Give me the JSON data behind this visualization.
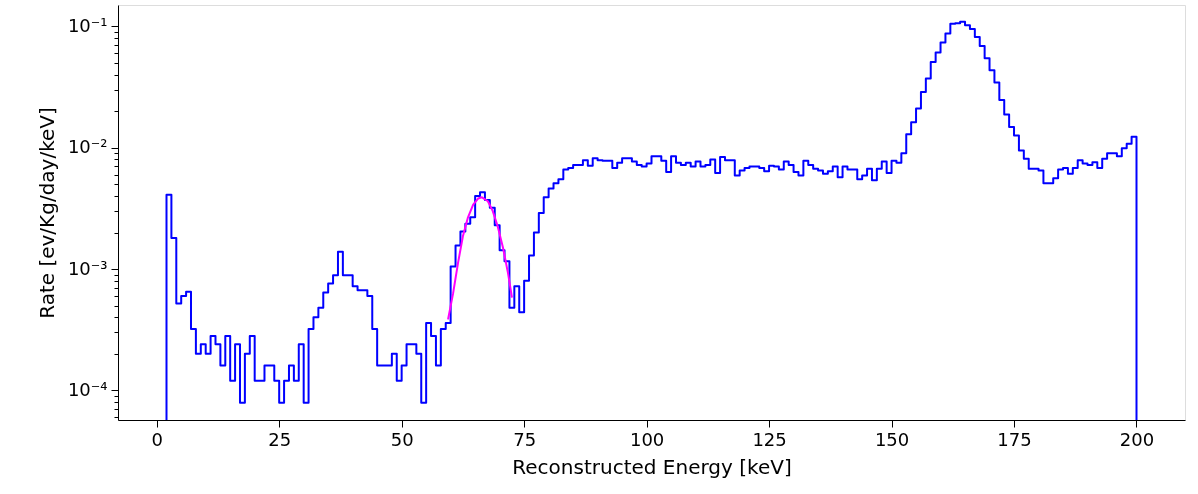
{
  "chart_data": {
    "type": "histogram",
    "xlabel": "Reconstructed Energy [keV]",
    "ylabel": "Rate [ev/Kg/day/keV]",
    "log": "y",
    "color": "#0000ff",
    "bins": [
      2,
      3,
      4,
      5,
      6,
      7,
      8,
      9,
      10,
      11,
      12,
      13,
      14,
      15,
      16,
      17,
      18,
      19,
      20,
      21,
      22,
      23,
      24,
      25,
      26,
      27,
      28,
      29,
      30,
      31,
      32,
      33,
      34,
      35,
      36,
      37,
      38,
      39,
      40,
      41,
      42,
      43,
      44,
      45,
      46,
      47,
      48,
      49,
      50,
      51,
      52,
      53,
      54,
      55,
      56,
      57,
      58,
      59,
      60,
      61,
      62,
      63,
      64,
      65,
      66,
      67,
      68,
      69,
      70,
      71,
      72,
      73,
      74,
      75,
      76,
      77,
      78,
      79,
      80,
      81,
      82,
      83,
      84,
      85,
      86,
      87,
      88,
      89,
      90,
      91,
      92,
      93,
      94,
      95,
      96,
      97,
      98,
      99,
      100,
      101,
      102,
      103,
      104,
      105,
      106,
      107,
      108,
      109,
      110,
      111,
      112,
      113,
      114,
      115,
      116,
      117,
      118,
      119,
      120,
      121,
      122,
      123,
      124,
      125,
      126,
      127,
      128,
      129,
      130,
      131,
      132,
      133,
      134,
      135,
      136,
      137,
      138,
      139,
      140,
      141,
      142,
      143,
      144,
      145,
      146,
      147,
      148,
      149,
      150,
      151,
      152,
      153,
      154,
      155,
      156,
      157,
      158,
      159,
      160,
      161,
      162,
      163,
      164,
      165,
      166,
      167,
      168,
      169,
      170,
      171,
      172,
      173,
      174,
      175,
      176,
      177,
      178,
      179,
      180,
      181,
      182,
      183,
      184,
      185,
      186,
      187,
      188,
      189,
      190,
      191,
      192,
      193,
      194,
      195,
      196,
      197,
      198,
      199,
      200
    ],
    "values": [
      0.0041,
      0.0018,
      0.00052,
      0.0006,
      0.00065,
      0.00032,
      0.0002,
      0.00024,
      0.0002,
      0.00028,
      0.00024,
      0.00016,
      0.00028,
      0.00012,
      0.00024,
      7.9e-05,
      0.0002,
      0.00028,
      0.00012,
      0.00012,
      0.00016,
      0.00016,
      0.00012,
      7.9e-05,
      0.00012,
      0.00016,
      0.00012,
      0.00024,
      7.9e-05,
      0.00032,
      0.0004,
      0.00048,
      0.00064,
      0.00076,
      0.00089,
      0.00139,
      0.00089,
      0.00089,
      0.00072,
      0.00067,
      0.00067,
      0.0006,
      0.00032,
      0.00016,
      0.00016,
      0.00016,
      0.0002,
      0.00012,
      0.00016,
      0.00024,
      0.00024,
      0.0002,
      7.9e-05,
      0.00036,
      0.00028,
      0.00016,
      0.00032,
      0.00036,
      0.00105,
      0.00156,
      0.00204,
      0.00236,
      0.00267,
      0.004,
      0.0043,
      0.0037,
      0.0032,
      0.0023,
      0.00143,
      0.00116,
      0.00048,
      0.00072,
      0.00044,
      0.0008,
      0.00129,
      0.002,
      0.0029,
      0.0039,
      0.0046,
      0.0051,
      0.0055,
      0.0066,
      0.0068,
      0.0072,
      0.0072,
      0.0079,
      0.0071,
      0.0082,
      0.0079,
      0.0078,
      0.0078,
      0.0068,
      0.0075,
      0.0082,
      0.0082,
      0.0077,
      0.0072,
      0.007,
      0.0074,
      0.0085,
      0.0085,
      0.0078,
      0.0063,
      0.0085,
      0.0075,
      0.0072,
      0.0075,
      0.007,
      0.0077,
      0.007,
      0.0072,
      0.008,
      0.0062,
      0.0084,
      0.0079,
      0.0079,
      0.0059,
      0.0065,
      0.0068,
      0.007,
      0.007,
      0.0068,
      0.0064,
      0.0071,
      0.007,
      0.0066,
      0.0077,
      0.0072,
      0.0063,
      0.0059,
      0.0078,
      0.0072,
      0.0067,
      0.0065,
      0.0061,
      0.0064,
      0.007,
      0.0057,
      0.007,
      0.0066,
      0.0066,
      0.0055,
      0.0059,
      0.0067,
      0.0054,
      0.0067,
      0.0077,
      0.0062,
      0.0078,
      0.0075,
      0.009,
      0.0129,
      0.0162,
      0.021,
      0.0288,
      0.0371,
      0.0508,
      0.0608,
      0.0735,
      0.0872,
      0.105,
      0.106,
      0.109,
      0.102,
      0.0953,
      0.0818,
      0.0689,
      0.0545,
      0.0434,
      0.0344,
      0.0247,
      0.0188,
      0.0148,
      0.0126,
      0.0095,
      0.0081,
      0.0067,
      0.0067,
      0.0065,
      0.0051,
      0.0051,
      0.0056,
      0.0066,
      0.0068,
      0.0061,
      0.0068,
      0.0079,
      0.0074,
      0.0072,
      0.0076,
      0.0068,
      0.0081,
      0.009,
      0.009,
      0.0085,
      0.0099,
      0.0108,
      0.0123
    ],
    "series": [
      {
        "type": "line",
        "color": "#ff00ff",
        "x": [
          59.5,
          60.5,
          61.5,
          62.5,
          63.5,
          64.6,
          65.6,
          66.4,
          67.6,
          68.6,
          69.6,
          70.7,
          71.7,
          72.5
        ],
        "values": [
          0.00039,
          0.00063,
          0.00112,
          0.00186,
          0.00264,
          0.0034,
          0.00381,
          0.0039,
          0.00362,
          0.003,
          0.00225,
          0.00149,
          0.00093,
          0.00059
        ]
      }
    ],
    "xlim": [
      -7.9,
      209.9
    ],
    "xticks": [
      0,
      25,
      50,
      75,
      100,
      125,
      150,
      175,
      200
    ],
    "ylim": [
      5.7e-05,
      0.15
    ],
    "yticks": [
      {
        "value": 6e-05,
        "label": null
      },
      {
        "value": 7e-05,
        "label": null
      },
      {
        "value": 8e-05,
        "label": null
      },
      {
        "value": 9e-05,
        "label": null
      },
      {
        "value": 0.0001,
        "label": "10⁻⁴"
      },
      {
        "value": 0.0002,
        "label": null
      },
      {
        "value": 0.0003,
        "label": null
      },
      {
        "value": 0.0004,
        "label": null
      },
      {
        "value": 0.0005,
        "label": null
      },
      {
        "value": 0.0006,
        "label": null
      },
      {
        "value": 0.0007,
        "label": null
      },
      {
        "value": 0.0008,
        "label": null
      },
      {
        "value": 0.0009,
        "label": null
      },
      {
        "value": 0.001,
        "label": "10⁻³"
      },
      {
        "value": 0.002,
        "label": null
      },
      {
        "value": 0.003,
        "label": null
      },
      {
        "value": 0.004,
        "label": null
      },
      {
        "value": 0.005,
        "label": null
      },
      {
        "value": 0.006,
        "label": null
      },
      {
        "value": 0.007,
        "label": null
      },
      {
        "value": 0.008,
        "label": null
      },
      {
        "value": 0.009,
        "label": null
      },
      {
        "value": 0.01,
        "label": "10⁻²"
      },
      {
        "value": 0.02,
        "label": null
      },
      {
        "value": 0.03,
        "label": null
      },
      {
        "value": 0.04,
        "label": null
      },
      {
        "value": 0.05,
        "label": null
      },
      {
        "value": 0.06,
        "label": null
      },
      {
        "value": 0.07,
        "label": null
      },
      {
        "value": 0.08,
        "label": null
      },
      {
        "value": 0.09,
        "label": null
      },
      {
        "value": 0.1,
        "label": "10⁻¹"
      }
    ],
    "grid": false
  }
}
